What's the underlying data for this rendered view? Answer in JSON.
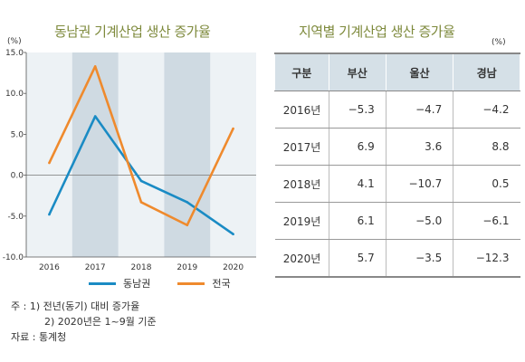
{
  "chart_data": {
    "type": "line",
    "title": "동남권 기계산업 생산 증가율",
    "unit": "(%)",
    "x": [
      "2016",
      "2017",
      "2018",
      "2019",
      "2020"
    ],
    "ylim": [
      -10,
      15
    ],
    "yticks": [
      "15.0",
      "10.0",
      "5.0",
      "0.0",
      "-5.0",
      "-10.0"
    ],
    "shaded_years": [
      "2017",
      "2019"
    ],
    "series": [
      {
        "name": "동남권",
        "color": "#1a8bc4",
        "values": [
          -4.8,
          7.2,
          -0.7,
          -3.3,
          -7.2
        ]
      },
      {
        "name": "전국",
        "color": "#ef8a2d",
        "values": [
          1.5,
          13.3,
          -3.3,
          -6.1,
          5.7
        ]
      }
    ]
  },
  "table": {
    "title": "지역별 기계산업 생산 증가율",
    "unit": "(%)",
    "headers": [
      "구분",
      "부산",
      "울산",
      "경남"
    ],
    "rows": [
      [
        "2016년",
        "−5.3",
        "−4.7",
        "−4.2"
      ],
      [
        "2017년",
        "6.9",
        "3.6",
        "8.8"
      ],
      [
        "2018년",
        "4.1",
        "−10.7",
        "0.5"
      ],
      [
        "2019년",
        "6.1",
        "−5.0",
        "−6.1"
      ],
      [
        "2020년",
        "5.7",
        "−3.5",
        "−12.3"
      ]
    ]
  },
  "notes": {
    "note1": "주 : 1) 전년(동기) 대비 증가율",
    "note2": "2) 2020년은 1~9월 기준",
    "source": "자료 : 통계청"
  }
}
